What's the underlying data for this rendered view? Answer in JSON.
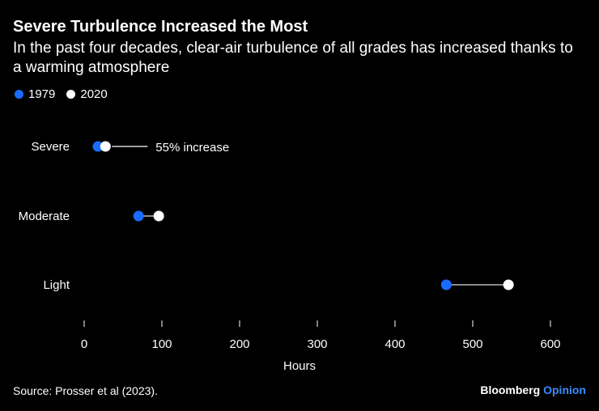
{
  "header": {
    "title": "Severe Turbulence Increased the Most",
    "subtitle": "In the past four decades, clear-air turbulence of all grades has increased thanks to a warming atmosphere"
  },
  "legend": {
    "items": [
      {
        "label": "1979",
        "color": "#1a6cff"
      },
      {
        "label": "2020",
        "color": "#ffffff"
      }
    ]
  },
  "chart_data": {
    "type": "scatter",
    "subtype": "dumbbell",
    "title": "Severe Turbulence Increased the Most",
    "xlabel": "Hours",
    "ylabel": "",
    "xlim": [
      0,
      600
    ],
    "xticks": [
      0,
      100,
      200,
      300,
      400,
      500,
      600
    ],
    "xtick_labels": [
      "0",
      "100",
      "200",
      "300",
      "400",
      "500",
      "600"
    ],
    "categories": [
      "Severe",
      "Moderate",
      "Light"
    ],
    "series": [
      {
        "name": "1979",
        "color": "#1a6cff",
        "values": [
          17.7,
          70,
          466
        ]
      },
      {
        "name": "2020",
        "color": "#ffffff",
        "values": [
          27.4,
          96,
          546
        ]
      }
    ],
    "annotations": [
      {
        "category": "Severe",
        "text": "55% increase"
      }
    ],
    "connector_color": "#8a8a8a"
  },
  "footer": {
    "source": "Source: Prosser et al (2023).",
    "brand_name": "Bloomberg",
    "brand_suffix": "Opinion"
  }
}
